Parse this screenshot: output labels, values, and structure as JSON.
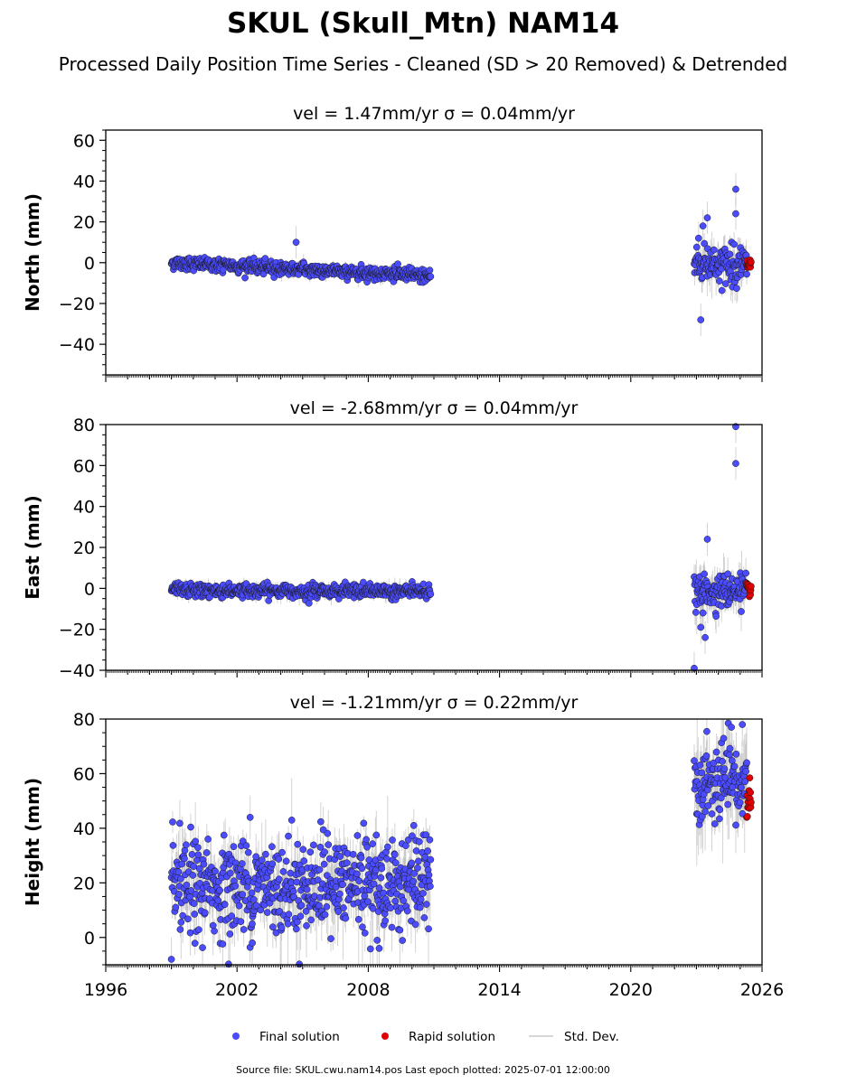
{
  "title": "SKUL (Skull_Mtn) NAM14",
  "subtitle": "Processed Daily Position Time Series - Cleaned (SD > 20 Removed) & Detrended",
  "footer": "Source file: SKUL.cwu.nam14.pos  Last epoch plotted: 2025-07-01 12:00:00",
  "legend": [
    {
      "label": "Final solution",
      "marker": "dot",
      "color": "#4b4bff"
    },
    {
      "label": "Rapid solution",
      "marker": "dot",
      "color": "#e00000"
    },
    {
      "label": "Std. Dev.",
      "marker": "line",
      "color": "#c8c8c8"
    }
  ],
  "colors": {
    "final": "#4b4bff",
    "rapid": "#e00000",
    "stddev": "#b0b0b0",
    "edge": "#1a1a1a"
  },
  "chart_data": [
    {
      "type": "scatter",
      "title": "vel = 1.47mm/yr   σ = 0.04mm/yr",
      "ylabel": "North (mm)",
      "xlim": [
        1996,
        2026
      ],
      "ylim": [
        -55,
        65
      ],
      "yticks": [
        -40,
        -20,
        0,
        20,
        40,
        60
      ],
      "ytick_labels": [
        "−40",
        "−20",
        "0",
        "20",
        "40",
        "60"
      ],
      "series": [
        {
          "name": "Final solution",
          "segments": [
            {
              "x_range": [
                1999.0,
                2010.85
              ],
              "start_mean": 0.0,
              "end_mean": -6.5,
              "spread": 1.6,
              "sd": 1.3
            },
            {
              "x_range": [
                2022.9,
                2025.3
              ],
              "start_mean": 0.0,
              "end_mean": -1.0,
              "spread": 4.5,
              "sd": 5.0
            }
          ],
          "outliers": [
            [
              2004.7,
              10
            ],
            [
              2023.2,
              -28
            ],
            [
              2023.5,
              22
            ],
            [
              2024.8,
              36
            ],
            [
              2024.8,
              24
            ],
            [
              2023.1,
              12
            ],
            [
              2023.3,
              18
            ]
          ]
        },
        {
          "name": "Rapid solution",
          "x_range": [
            2025.3,
            2025.5
          ],
          "mean": -1.0,
          "spread": 2.0
        }
      ]
    },
    {
      "type": "scatter",
      "title": "vel = -2.68mm/yr   σ = 0.04mm/yr",
      "ylabel": "East (mm)",
      "xlim": [
        1996,
        2026
      ],
      "ylim": [
        -40,
        80
      ],
      "yticks": [
        -40,
        -20,
        0,
        20,
        40,
        60,
        80
      ],
      "ytick_labels": [
        "−40",
        "−20",
        "0",
        "20",
        "40",
        "60",
        "80"
      ],
      "series": [
        {
          "name": "Final solution",
          "segments": [
            {
              "x_range": [
                1999.0,
                2010.85
              ],
              "start_mean": -1.0,
              "end_mean": -1.5,
              "spread": 1.6,
              "sd": 1.5
            },
            {
              "x_range": [
                2022.9,
                2025.3
              ],
              "start_mean": -2.0,
              "end_mean": -1.0,
              "spread": 4.0,
              "sd": 5.0
            }
          ],
          "outliers": [
            [
              2024.8,
              79
            ],
            [
              2024.8,
              61
            ],
            [
              2022.9,
              -39
            ],
            [
              2023.4,
              -24
            ],
            [
              2023.5,
              24
            ],
            [
              2023.2,
              -19
            ],
            [
              2023.3,
              -12
            ]
          ]
        },
        {
          "name": "Rapid solution",
          "x_range": [
            2025.3,
            2025.5
          ],
          "mean": -0.5,
          "spread": 1.5
        }
      ]
    },
    {
      "type": "scatter",
      "title": "vel = -1.21mm/yr   σ = 0.22mm/yr",
      "ylabel": "Height (mm)",
      "xlim": [
        1996,
        2026
      ],
      "ylim": [
        -10,
        80
      ],
      "yticks": [
        0,
        20,
        40,
        60,
        80
      ],
      "ytick_labels": [
        "0",
        "20",
        "40",
        "60",
        "80"
      ],
      "xticks": [
        1996,
        2002,
        2008,
        2014,
        2020,
        2026
      ],
      "xtick_labels": [
        "1996",
        "2002",
        "2008",
        "2014",
        "2020",
        "2026"
      ],
      "series": [
        {
          "name": "Final solution",
          "segments": [
            {
              "x_range": [
                1999.0,
                2010.85
              ],
              "start_mean": 18.0,
              "end_mean": 20.0,
              "spread": 8.5,
              "sd": 6.0
            },
            {
              "x_range": [
                2022.9,
                2025.3
              ],
              "start_mean": 56.0,
              "end_mean": 55.0,
              "spread": 7.0,
              "sd": 8.0
            }
          ],
          "outliers": [
            [
              1999.0,
              -8
            ],
            [
              2002.6,
              44
            ],
            [
              2008.5,
              -4
            ],
            [
              2002.7,
              -2
            ],
            [
              2025.1,
              78
            ],
            [
              2024.6,
              77
            ]
          ]
        },
        {
          "name": "Rapid solution",
          "x_range": [
            2025.3,
            2025.5
          ],
          "mean": 50.0,
          "spread": 4.0
        }
      ]
    }
  ]
}
